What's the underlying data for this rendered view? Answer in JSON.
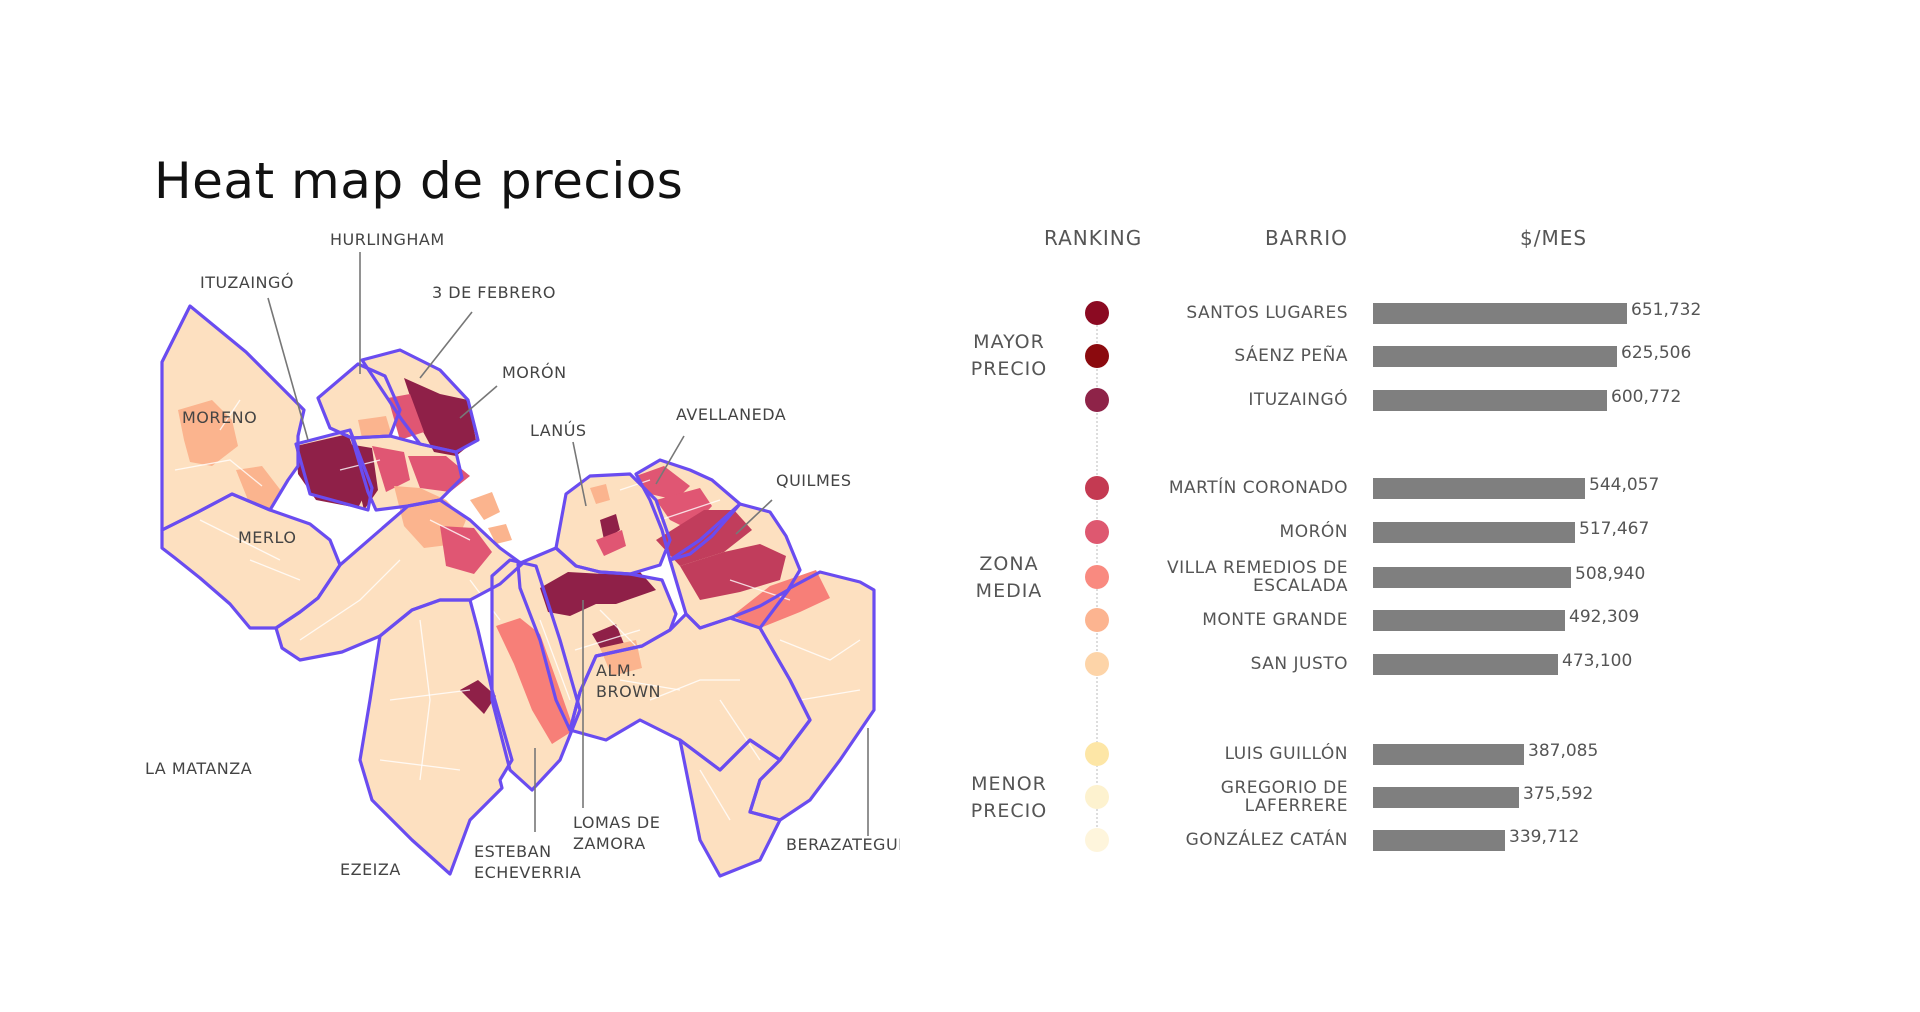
{
  "title": "Heat map de precios",
  "map": {
    "labels": {
      "hurlingham": "HURLINGHAM",
      "ituzaingo": "ITUZAINGÓ",
      "tres_de_febrero": "3 DE FEBRERO",
      "moron": "MORÓN",
      "lanus": "LANÚS",
      "avellaneda": "AVELLANEDA",
      "quilmes": "QUILMES",
      "moreno": "MORENO",
      "merlo": "MERLO",
      "la_matanza": "LA MATANZA",
      "ezeiza": "EZEIZA",
      "esteban_echeverria": [
        "ESTEBAN",
        "ECHEVERRIA"
      ],
      "lomas_de_zamora": [
        "LOMAS DE",
        "ZAMORA"
      ],
      "alm_brown": [
        "ALM.",
        "BROWN"
      ],
      "berazategui": "BERAZATEGUI"
    },
    "colors": {
      "base": "#fde0c0",
      "light_orange": "#fbb48e",
      "salmon": "#f77f78",
      "rose": "#e05673",
      "crimson": "#c13d5c",
      "wine": "#8f2048",
      "border": "#6a4cf0"
    }
  },
  "ranking": {
    "headers": {
      "ranking": "RANKING",
      "barrio": "BARRIO",
      "price": "$/MES"
    },
    "groups": [
      {
        "key": "mayor",
        "label": [
          "MAYOR",
          "PRECIO"
        ]
      },
      {
        "key": "media",
        "label": [
          "ZONA",
          "MEDIA"
        ]
      },
      {
        "key": "menor",
        "label": [
          "MENOR",
          "PRECIO"
        ]
      }
    ],
    "items": [
      {
        "barrio": [
          "SANTOS LUGARES"
        ],
        "value": 651732,
        "value_label": "651,732",
        "color": "#8b0a22"
      },
      {
        "barrio": [
          "SÁENZ PEÑA"
        ],
        "value": 625506,
        "value_label": "625,506",
        "color": "#8b0a0e"
      },
      {
        "barrio": [
          "ITUZAINGÓ"
        ],
        "value": 600772,
        "value_label": "600,772",
        "color": "#8e2348"
      },
      {
        "barrio": [
          "MARTÍN CORONADO"
        ],
        "value": 544057,
        "value_label": "544,057",
        "color": "#c43a52"
      },
      {
        "barrio": [
          "MORÓN"
        ],
        "value": 517467,
        "value_label": "517,467",
        "color": "#de5870"
      },
      {
        "barrio": [
          "VILLA REMEDIOS DE",
          "ESCALADA"
        ],
        "value": 508940,
        "value_label": "508,940",
        "color": "#f98a80"
      },
      {
        "barrio": [
          "MONTE GRANDE"
        ],
        "value": 492309,
        "value_label": "492,309",
        "color": "#fcb490"
      },
      {
        "barrio": [
          "SAN JUSTO"
        ],
        "value": 473100,
        "value_label": "473,100",
        "color": "#fdd4a8"
      },
      {
        "barrio": [
          "LUIS GUILLÓN"
        ],
        "value": 387085,
        "value_label": "387,085",
        "color": "#fde6a6"
      },
      {
        "barrio": [
          "GREGORIO DE",
          "LAFERRERE"
        ],
        "value": 375592,
        "value_label": "375,592",
        "color": "#fdf2cf"
      },
      {
        "barrio": [
          "GONZÁLEZ CATÁN"
        ],
        "value": 339712,
        "value_label": "339,712",
        "color": "#fef5dc"
      }
    ]
  }
}
